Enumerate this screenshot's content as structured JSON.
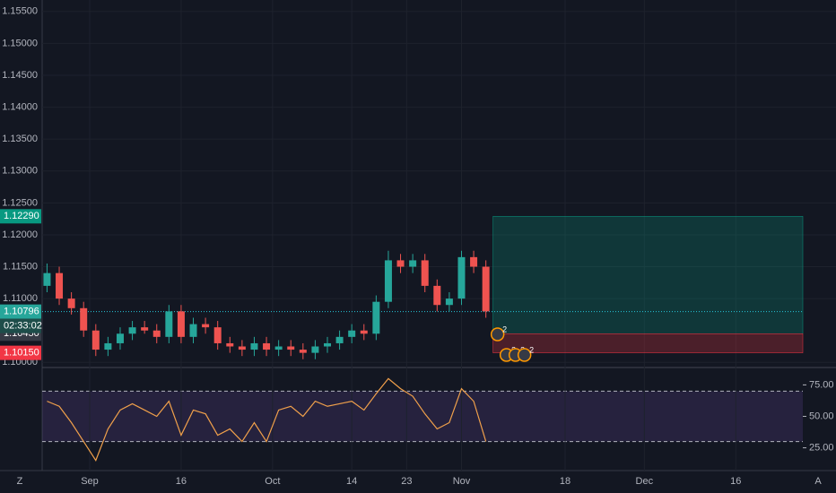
{
  "chart_data": [
    {
      "type": "candlestick",
      "colors": {
        "up": "#26a69a",
        "down": "#ef5350",
        "line": "#26c6da"
      },
      "x": [
        -7,
        -5,
        -3,
        -1,
        1,
        3,
        5,
        7,
        9,
        11,
        13,
        15,
        17,
        19,
        21,
        23,
        25,
        27,
        29,
        31,
        33,
        35,
        37,
        39,
        41,
        43,
        45,
        47,
        49,
        51,
        53,
        55,
        57,
        59,
        61,
        63,
        65
      ],
      "open": [
        1.112,
        1.114,
        1.11,
        1.1085,
        1.105,
        1.102,
        1.103,
        1.1045,
        1.1055,
        1.105,
        1.104,
        1.108,
        1.104,
        1.106,
        1.1055,
        1.103,
        1.1025,
        1.102,
        1.103,
        1.102,
        1.1025,
        1.102,
        1.1015,
        1.1025,
        1.103,
        1.104,
        1.105,
        1.1045,
        1.1095,
        1.116,
        1.115,
        1.116,
        1.112,
        1.109,
        1.11,
        1.1165,
        1.115
      ],
      "high": [
        1.1155,
        1.115,
        1.111,
        1.1095,
        1.106,
        1.104,
        1.1055,
        1.1065,
        1.1065,
        1.106,
        1.109,
        1.109,
        1.107,
        1.107,
        1.1065,
        1.104,
        1.1035,
        1.104,
        1.104,
        1.1035,
        1.1035,
        1.103,
        1.1035,
        1.104,
        1.105,
        1.106,
        1.106,
        1.1105,
        1.1175,
        1.117,
        1.117,
        1.117,
        1.113,
        1.111,
        1.1175,
        1.1175,
        1.116
      ],
      "low": [
        1.111,
        1.109,
        1.1075,
        1.104,
        1.101,
        1.101,
        1.102,
        1.1035,
        1.1045,
        1.103,
        1.103,
        1.103,
        1.103,
        1.1045,
        1.102,
        1.1015,
        1.101,
        1.101,
        1.101,
        1.101,
        1.101,
        1.1005,
        1.1005,
        1.1015,
        1.102,
        1.103,
        1.1035,
        1.1035,
        1.1085,
        1.114,
        1.114,
        1.111,
        1.108,
        1.108,
        1.109,
        1.114,
        1.107
      ],
      "close": [
        1.114,
        1.11,
        1.1085,
        1.105,
        1.102,
        1.103,
        1.1045,
        1.1055,
        1.105,
        1.104,
        1.108,
        1.104,
        1.106,
        1.1055,
        1.103,
        1.1025,
        1.102,
        1.103,
        1.102,
        1.1025,
        1.102,
        1.1015,
        1.1025,
        1.103,
        1.104,
        1.105,
        1.1045,
        1.1095,
        1.116,
        1.115,
        1.116,
        1.112,
        1.109,
        1.11,
        1.1165,
        1.115,
        1.108
      ],
      "xlim": [
        -7.8,
        117
      ],
      "ylim": [
        1.0992,
        1.1568
      ],
      "yticks": [
        {
          "value": 1.155,
          "label": "1.15500"
        },
        {
          "value": 1.15,
          "label": "1.15000"
        },
        {
          "value": 1.145,
          "label": "1.14500"
        },
        {
          "value": 1.14,
          "label": "1.14000"
        },
        {
          "value": 1.135,
          "label": "1.13500"
        },
        {
          "value": 1.13,
          "label": "1.13000"
        },
        {
          "value": 1.125,
          "label": "1.12500"
        },
        {
          "value": 1.12,
          "label": "1.12000"
        },
        {
          "value": 1.115,
          "label": "1.11500"
        },
        {
          "value": 1.11,
          "label": "1.11000"
        },
        {
          "value": 1.1,
          "label": "1.10000"
        }
      ],
      "price_labels": [
        {
          "value": 1.1229,
          "label": "1.12290",
          "color": "#089981"
        },
        {
          "value": 1.10796,
          "label": "1.10796",
          "color": "#26a69a"
        },
        {
          "value": 1.1045,
          "label": "1.10450",
          "color": "#363a45"
        },
        {
          "value": 1.1015,
          "label": "1.10150",
          "color": "#f23645"
        }
      ],
      "countdown": "02:33:02",
      "events": [
        "2",
        "3",
        "3",
        "2"
      ],
      "grid": true
    },
    {
      "type": "line",
      "color": "#f0a04b",
      "x": [
        -7,
        -5,
        -3,
        -1,
        1,
        3,
        5,
        7,
        9,
        11,
        13,
        15,
        17,
        19,
        21,
        23,
        25,
        27,
        29,
        31,
        33,
        35,
        37,
        39,
        41,
        43,
        45,
        47,
        49,
        51,
        53,
        55,
        57,
        59,
        61,
        63,
        65
      ],
      "values": [
        62,
        58,
        45,
        30,
        15,
        40,
        55,
        60,
        55,
        50,
        62,
        35,
        55,
        52,
        35,
        40,
        30,
        45,
        30,
        55,
        58,
        50,
        62,
        58,
        60,
        62,
        55,
        68,
        80,
        72,
        66,
        52,
        40,
        45,
        72,
        62,
        30
      ],
      "band": [
        30,
        70
      ],
      "xlim": [
        -7.8,
        117
      ],
      "ylim": [
        6.9,
        88.8
      ],
      "yticks": [
        {
          "value": 75,
          "label": "75.00"
        },
        {
          "value": 50,
          "label": "50.00"
        },
        {
          "value": 25,
          "label": "25.00"
        }
      ],
      "xticks": [
        {
          "value": 0,
          "label": "Sep"
        },
        {
          "value": 15,
          "label": "16"
        },
        {
          "value": 30,
          "label": "Oct"
        },
        {
          "value": 43,
          "label": "14"
        },
        {
          "value": 52,
          "label": "23"
        },
        {
          "value": 61,
          "label": "Nov"
        },
        {
          "value": 78,
          "label": "18"
        },
        {
          "value": 91,
          "label": "Dec"
        },
        {
          "value": 106,
          "label": "16"
        }
      ],
      "grid": true
    },
    {
      "type": "corner",
      "left": "Z",
      "right": "A"
    }
  ]
}
